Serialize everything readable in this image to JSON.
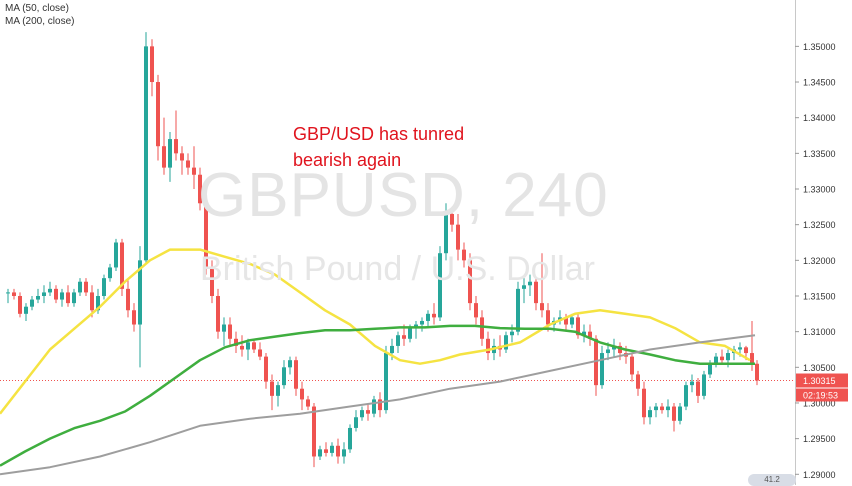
{
  "legend": {
    "ma50": "MA (50, close)",
    "ma200": "MA (200, close)"
  },
  "annotation": {
    "line1": "GBP/USD has tunred",
    "line2": "bearish again"
  },
  "watermark": {
    "symbol": "GBPUSD, 240",
    "description": "British Pound / U.S. Dollar"
  },
  "badge": "41.2",
  "colors": {
    "up": "#26a69a",
    "down": "#ef5350",
    "ma50": "#f5e342",
    "ma200": "#9e9e9e",
    "ma_green": "#3fae3f",
    "price_tag": "#ef5350",
    "time_tag": "#ef5350",
    "annotation": "#e0141e"
  },
  "chart_data": {
    "type": "candlestick",
    "title": "",
    "symbol": "GBPUSD",
    "timeframe": "240",
    "ylim": [
      1.2885,
      1.3565
    ],
    "y_ticks": [
      "1.35000",
      "1.34500",
      "1.34000",
      "1.33500",
      "1.33000",
      "1.32500",
      "1.32000",
      "1.31500",
      "1.31000",
      "1.30500",
      "1.30000",
      "1.29500",
      "1.29000"
    ],
    "y_tick_values": [
      1.35,
      1.345,
      1.34,
      1.335,
      1.33,
      1.325,
      1.32,
      1.315,
      1.31,
      1.305,
      1.3,
      1.295,
      1.29
    ],
    "last_price_label": "1.30315",
    "last_price": 1.30315,
    "countdown_label": "02:19:53",
    "series": [
      {
        "name": "MA (50, close)",
        "color": "#f5e342",
        "values": [
          [
            0,
            1.2985
          ],
          [
            25,
            1.303
          ],
          [
            50,
            1.3075
          ],
          [
            75,
            1.3105
          ],
          [
            100,
            1.3135
          ],
          [
            125,
            1.317
          ],
          [
            150,
            1.32
          ],
          [
            170,
            1.3215
          ],
          [
            200,
            1.3215
          ],
          [
            225,
            1.3205
          ],
          [
            250,
            1.3195
          ],
          [
            275,
            1.318
          ],
          [
            300,
            1.3155
          ],
          [
            325,
            1.313
          ],
          [
            350,
            1.311
          ],
          [
            375,
            1.308
          ],
          [
            400,
            1.306
          ],
          [
            420,
            1.3055
          ],
          [
            440,
            1.306
          ],
          [
            460,
            1.3068
          ],
          [
            490,
            1.3075
          ],
          [
            520,
            1.3085
          ],
          [
            550,
            1.311
          ],
          [
            575,
            1.3125
          ],
          [
            600,
            1.313
          ],
          [
            625,
            1.3125
          ],
          [
            650,
            1.312
          ],
          [
            675,
            1.3105
          ],
          [
            700,
            1.3085
          ],
          [
            725,
            1.308
          ],
          [
            750,
            1.306
          ]
        ]
      },
      {
        "name": "MA (200, close)",
        "color": "#3fae3f",
        "values": [
          [
            0,
            1.2912
          ],
          [
            25,
            1.2932
          ],
          [
            50,
            1.295
          ],
          [
            75,
            1.2965
          ],
          [
            100,
            1.2975
          ],
          [
            125,
            1.2988
          ],
          [
            150,
            1.301
          ],
          [
            175,
            1.3035
          ],
          [
            200,
            1.306
          ],
          [
            225,
            1.3078
          ],
          [
            250,
            1.3088
          ],
          [
            275,
            1.3093
          ],
          [
            300,
            1.3098
          ],
          [
            325,
            1.3102
          ],
          [
            350,
            1.3102
          ],
          [
            375,
            1.3104
          ],
          [
            400,
            1.3106
          ],
          [
            425,
            1.3106
          ],
          [
            450,
            1.3108
          ],
          [
            475,
            1.3108
          ],
          [
            500,
            1.3105
          ],
          [
            525,
            1.3104
          ],
          [
            550,
            1.3104
          ],
          [
            575,
            1.31
          ],
          [
            600,
            1.3085
          ],
          [
            625,
            1.3075
          ],
          [
            650,
            1.3068
          ],
          [
            675,
            1.306
          ],
          [
            700,
            1.3055
          ],
          [
            725,
            1.3055
          ],
          [
            755,
            1.3055
          ]
        ]
      },
      {
        "name": "grey",
        "color": "#9e9e9e",
        "values": [
          [
            0,
            1.29
          ],
          [
            50,
            1.291
          ],
          [
            100,
            1.2925
          ],
          [
            150,
            1.2945
          ],
          [
            200,
            1.2968
          ],
          [
            250,
            1.2978
          ],
          [
            300,
            1.2985
          ],
          [
            350,
            1.2995
          ],
          [
            400,
            1.3005
          ],
          [
            450,
            1.302
          ],
          [
            500,
            1.303
          ],
          [
            550,
            1.3045
          ],
          [
            600,
            1.306
          ],
          [
            650,
            1.3075
          ],
          [
            700,
            1.3085
          ],
          [
            755,
            1.3095
          ]
        ]
      }
    ],
    "candles": [
      [
        8,
        1.3155,
        1.316,
        1.314,
        1.3155
      ],
      [
        14,
        1.3155,
        1.316,
        1.3145,
        1.315
      ],
      [
        20,
        1.315,
        1.3155,
        1.312,
        1.3125
      ],
      [
        26,
        1.3125,
        1.314,
        1.3115,
        1.3135
      ],
      [
        32,
        1.3135,
        1.315,
        1.313,
        1.3145
      ],
      [
        38,
        1.3145,
        1.316,
        1.314,
        1.315
      ],
      [
        44,
        1.315,
        1.3165,
        1.314,
        1.3155
      ],
      [
        50,
        1.3155,
        1.317,
        1.315,
        1.316
      ],
      [
        56,
        1.316,
        1.3165,
        1.314,
        1.3145
      ],
      [
        62,
        1.3145,
        1.316,
        1.3135,
        1.3155
      ],
      [
        68,
        1.3155,
        1.3165,
        1.3135,
        1.314
      ],
      [
        74,
        1.314,
        1.316,
        1.3135,
        1.3155
      ],
      [
        80,
        1.3155,
        1.3175,
        1.315,
        1.317
      ],
      [
        86,
        1.317,
        1.3175,
        1.315,
        1.3155
      ],
      [
        92,
        1.3155,
        1.3165,
        1.312,
        1.313
      ],
      [
        98,
        1.313,
        1.316,
        1.3125,
        1.315
      ],
      [
        104,
        1.315,
        1.318,
        1.3145,
        1.3175
      ],
      [
        110,
        1.3175,
        1.3195,
        1.317,
        1.319
      ],
      [
        116,
        1.319,
        1.323,
        1.3185,
        1.3225
      ],
      [
        122,
        1.3225,
        1.323,
        1.315,
        1.316
      ],
      [
        128,
        1.316,
        1.3175,
        1.312,
        1.313
      ],
      [
        134,
        1.313,
        1.314,
        1.31,
        1.311
      ],
      [
        140,
        1.311,
        1.322,
        1.305,
        1.32
      ],
      [
        146,
        1.32,
        1.352,
        1.3195,
        1.35
      ],
      [
        152,
        1.35,
        1.351,
        1.343,
        1.345
      ],
      [
        158,
        1.345,
        1.346,
        1.334,
        1.336
      ],
      [
        164,
        1.336,
        1.34,
        1.332,
        1.333
      ],
      [
        170,
        1.333,
        1.338,
        1.331,
        1.337
      ],
      [
        176,
        1.337,
        1.341,
        1.334,
        1.335
      ],
      [
        182,
        1.335,
        1.336,
        1.332,
        1.334
      ],
      [
        188,
        1.334,
        1.335,
        1.332,
        1.333
      ],
      [
        194,
        1.333,
        1.336,
        1.33,
        1.332
      ],
      [
        200,
        1.332,
        1.333,
        1.327,
        1.328
      ],
      [
        206,
        1.328,
        1.329,
        1.318,
        1.319
      ],
      [
        212,
        1.319,
        1.32,
        1.314,
        1.315
      ],
      [
        218,
        1.315,
        1.316,
        1.309,
        1.31
      ],
      [
        224,
        1.31,
        1.312,
        1.308,
        1.311
      ],
      [
        230,
        1.311,
        1.312,
        1.308,
        1.309
      ],
      [
        236,
        1.309,
        1.31,
        1.307,
        1.308
      ],
      [
        242,
        1.308,
        1.3095,
        1.3065,
        1.3075
      ],
      [
        248,
        1.3075,
        1.309,
        1.306,
        1.3085
      ],
      [
        254,
        1.3085,
        1.309,
        1.307,
        1.3075
      ],
      [
        260,
        1.3075,
        1.3085,
        1.306,
        1.3065
      ],
      [
        266,
        1.3065,
        1.307,
        1.302,
        1.303
      ],
      [
        272,
        1.303,
        1.304,
        1.299,
        1.301
      ],
      [
        278,
        1.301,
        1.303,
        1.2995,
        1.3025
      ],
      [
        284,
        1.3025,
        1.306,
        1.302,
        1.305
      ],
      [
        290,
        1.305,
        1.3065,
        1.304,
        1.306
      ],
      [
        296,
        1.306,
        1.3065,
        1.301,
        1.302
      ],
      [
        302,
        1.302,
        1.303,
        1.299,
        1.3005
      ],
      [
        308,
        1.3005,
        1.301,
        1.299,
        1.2995
      ],
      [
        314,
        1.2995,
        1.3,
        1.291,
        1.2925
      ],
      [
        320,
        1.2925,
        1.294,
        1.292,
        1.2935
      ],
      [
        326,
        1.2935,
        1.2945,
        1.2925,
        1.293
      ],
      [
        332,
        1.293,
        1.2945,
        1.2925,
        1.294
      ],
      [
        338,
        1.294,
        1.295,
        1.2915,
        1.2925
      ],
      [
        344,
        1.2925,
        1.2945,
        1.2915,
        1.2935
      ],
      [
        350,
        1.2935,
        1.297,
        1.293,
        1.2965
      ],
      [
        356,
        1.2965,
        1.299,
        1.296,
        1.298
      ],
      [
        362,
        1.298,
        1.2995,
        1.2975,
        1.299
      ],
      [
        368,
        1.299,
        1.3,
        1.2975,
        1.2985
      ],
      [
        374,
        1.2985,
        1.301,
        1.298,
        1.3005
      ],
      [
        380,
        1.3005,
        1.3015,
        1.298,
        1.299
      ],
      [
        386,
        1.299,
        1.308,
        1.2985,
        1.307
      ],
      [
        392,
        1.307,
        1.309,
        1.306,
        1.308
      ],
      [
        398,
        1.308,
        1.31,
        1.307,
        1.3095
      ],
      [
        404,
        1.3095,
        1.311,
        1.308,
        1.309
      ],
      [
        410,
        1.309,
        1.311,
        1.3085,
        1.3105
      ],
      [
        416,
        1.3105,
        1.3115,
        1.309,
        1.311
      ],
      [
        422,
        1.311,
        1.312,
        1.31,
        1.3115
      ],
      [
        428,
        1.3115,
        1.313,
        1.3105,
        1.3125
      ],
      [
        434,
        1.3125,
        1.314,
        1.311,
        1.312
      ],
      [
        440,
        1.312,
        1.322,
        1.3115,
        1.321
      ],
      [
        446,
        1.321,
        1.328,
        1.32,
        1.3265
      ],
      [
        452,
        1.3265,
        1.3275,
        1.324,
        1.325
      ],
      [
        458,
        1.325,
        1.3265,
        1.32,
        1.3215
      ],
      [
        464,
        1.3215,
        1.3225,
        1.319,
        1.32
      ],
      [
        470,
        1.32,
        1.321,
        1.313,
        1.314
      ],
      [
        476,
        1.314,
        1.315,
        1.311,
        1.312
      ],
      [
        482,
        1.312,
        1.313,
        1.308,
        1.309
      ],
      [
        488,
        1.309,
        1.31,
        1.306,
        1.307
      ],
      [
        494,
        1.307,
        1.309,
        1.306,
        1.308
      ],
      [
        500,
        1.308,
        1.3095,
        1.3065,
        1.3075
      ],
      [
        506,
        1.3075,
        1.31,
        1.307,
        1.3095
      ],
      [
        512,
        1.3095,
        1.311,
        1.3085,
        1.31
      ],
      [
        518,
        1.31,
        1.317,
        1.3095,
        1.316
      ],
      [
        524,
        1.316,
        1.3175,
        1.314,
        1.3165
      ],
      [
        530,
        1.3165,
        1.318,
        1.315,
        1.317
      ],
      [
        536,
        1.317,
        1.3175,
        1.313,
        1.314
      ],
      [
        542,
        1.314,
        1.321,
        1.312,
        1.313
      ],
      [
        548,
        1.313,
        1.314,
        1.31,
        1.311
      ],
      [
        554,
        1.311,
        1.312,
        1.31,
        1.3115
      ],
      [
        560,
        1.3115,
        1.313,
        1.311,
        1.312
      ],
      [
        566,
        1.312,
        1.3125,
        1.31,
        1.311
      ],
      [
        572,
        1.311,
        1.3125,
        1.3105,
        1.312
      ],
      [
        578,
        1.312,
        1.3125,
        1.309,
        1.3095
      ],
      [
        584,
        1.3095,
        1.311,
        1.3085,
        1.31
      ],
      [
        590,
        1.31,
        1.311,
        1.308,
        1.309
      ],
      [
        596,
        1.309,
        1.3095,
        1.301,
        1.3025
      ],
      [
        602,
        1.3025,
        1.308,
        1.302,
        1.307
      ],
      [
        608,
        1.307,
        1.3085,
        1.306,
        1.3075
      ],
      [
        614,
        1.3075,
        1.309,
        1.3065,
        1.308
      ],
      [
        620,
        1.308,
        1.3085,
        1.306,
        1.307
      ],
      [
        626,
        1.307,
        1.308,
        1.3055,
        1.3065
      ],
      [
        632,
        1.3065,
        1.307,
        1.303,
        1.304
      ],
      [
        638,
        1.304,
        1.3045,
        1.301,
        1.302
      ],
      [
        644,
        1.302,
        1.303,
        1.297,
        1.298
      ],
      [
        650,
        1.298,
        1.2995,
        1.297,
        1.299
      ],
      [
        656,
        1.299,
        1.3,
        1.298,
        1.2995
      ],
      [
        662,
        1.2995,
        1.3,
        1.2985,
        1.299
      ],
      [
        668,
        1.299,
        1.3005,
        1.298,
        1.2995
      ],
      [
        674,
        1.2995,
        1.3,
        1.296,
        1.2975
      ],
      [
        680,
        1.2975,
        1.3,
        1.297,
        1.2995
      ],
      [
        686,
        1.2995,
        1.303,
        1.299,
        1.3025
      ],
      [
        692,
        1.3025,
        1.304,
        1.3015,
        1.303
      ],
      [
        698,
        1.303,
        1.3035,
        1.3,
        1.301
      ],
      [
        704,
        1.301,
        1.3045,
        1.3005,
        1.304
      ],
      [
        710,
        1.304,
        1.306,
        1.3035,
        1.3055
      ],
      [
        716,
        1.3055,
        1.307,
        1.305,
        1.3065
      ],
      [
        722,
        1.3065,
        1.3075,
        1.3055,
        1.306
      ],
      [
        728,
        1.306,
        1.3075,
        1.305,
        1.307
      ],
      [
        734,
        1.307,
        1.308,
        1.306,
        1.3075
      ],
      [
        740,
        1.3075,
        1.3085,
        1.3065,
        1.3078
      ],
      [
        746,
        1.3078,
        1.308,
        1.306,
        1.307
      ],
      [
        752,
        1.307,
        1.3115,
        1.3045,
        1.3055
      ],
      [
        757,
        1.3055,
        1.306,
        1.3025,
        1.30315
      ]
    ]
  }
}
